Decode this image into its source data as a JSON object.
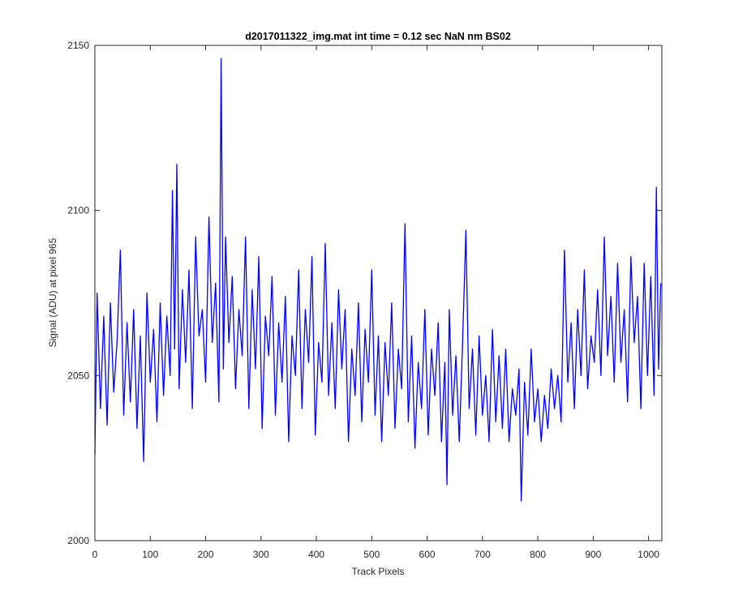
{
  "chart_data": {
    "type": "line",
    "title": "d2017011322_img.mat int time = 0.12 sec  NaN nm BS02",
    "xlabel": "Track Pixels",
    "ylabel": "Signal (ADU) at pixel 965",
    "xlim": [
      0,
      1024
    ],
    "ylim": [
      2000,
      2150
    ],
    "xticks": [
      0,
      100,
      200,
      300,
      400,
      500,
      600,
      700,
      800,
      900,
      1000
    ],
    "xtick_labels": [
      "0",
      "100",
      "200",
      "300",
      "400",
      "500",
      "600",
      "700",
      "800",
      "900",
      "1000"
    ],
    "yticks": [
      2000,
      2050,
      2100,
      2150
    ],
    "ytick_labels": [
      "2000",
      "2050",
      "2100",
      "2150"
    ],
    "grid": false,
    "line_color": "#0000ff",
    "series": [
      {
        "x": [
          0,
          4,
          10,
          16,
          22,
          28,
          34,
          40,
          46,
          52,
          58,
          64,
          70,
          76,
          82,
          88,
          94,
          100,
          106,
          112,
          118,
          124,
          130,
          136,
          140,
          144,
          148,
          152,
          158,
          164,
          170,
          176,
          182,
          188,
          194,
          200,
          206,
          212,
          218,
          224,
          228,
          232,
          236,
          242,
          248,
          254,
          260,
          266,
          272,
          278,
          284,
          290,
          296,
          302,
          308,
          314,
          320,
          326,
          332,
          338,
          344,
          350,
          356,
          362,
          368,
          374,
          380,
          386,
          392,
          398,
          404,
          410,
          416,
          422,
          428,
          434,
          440,
          446,
          452,
          458,
          464,
          470,
          476,
          482,
          488,
          494,
          500,
          506,
          512,
          518,
          524,
          530,
          536,
          542,
          548,
          554,
          560,
          566,
          572,
          578,
          584,
          590,
          596,
          602,
          608,
          614,
          620,
          626,
          632,
          636,
          640,
          646,
          652,
          658,
          664,
          670,
          676,
          682,
          688,
          694,
          700,
          706,
          712,
          718,
          724,
          730,
          736,
          742,
          748,
          754,
          760,
          766,
          770,
          776,
          782,
          788,
          794,
          800,
          806,
          812,
          818,
          824,
          830,
          836,
          842,
          848,
          854,
          860,
          866,
          872,
          878,
          884,
          890,
          896,
          902,
          908,
          914,
          920,
          926,
          932,
          938,
          944,
          950,
          956,
          962,
          968,
          974,
          980,
          986,
          992,
          998,
          1004,
          1010,
          1014,
          1018,
          1022
        ],
        "y": [
          2026,
          2075,
          2040,
          2068,
          2035,
          2072,
          2045,
          2060,
          2088,
          2038,
          2066,
          2042,
          2070,
          2034,
          2062,
          2024,
          2075,
          2048,
          2064,
          2036,
          2072,
          2044,
          2068,
          2050,
          2106,
          2058,
          2114,
          2046,
          2076,
          2054,
          2082,
          2040,
          2092,
          2062,
          2070,
          2048,
          2098,
          2060,
          2078,
          2042,
          2146,
          2052,
          2092,
          2060,
          2080,
          2046,
          2070,
          2056,
          2092,
          2040,
          2076,
          2052,
          2086,
          2034,
          2068,
          2056,
          2080,
          2038,
          2066,
          2048,
          2074,
          2030,
          2062,
          2050,
          2082,
          2040,
          2070,
          2054,
          2086,
          2032,
          2060,
          2048,
          2090,
          2044,
          2066,
          2040,
          2076,
          2052,
          2070,
          2030,
          2058,
          2044,
          2072,
          2036,
          2064,
          2048,
          2082,
          2038,
          2062,
          2030,
          2060,
          2044,
          2072,
          2034,
          2058,
          2046,
          2096,
          2036,
          2062,
          2028,
          2054,
          2040,
          2070,
          2032,
          2058,
          2044,
          2066,
          2030,
          2054,
          2017,
          2070,
          2038,
          2056,
          2030,
          2060,
          2094,
          2040,
          2058,
          2032,
          2062,
          2038,
          2050,
          2030,
          2064,
          2036,
          2056,
          2034,
          2058,
          2030,
          2046,
          2038,
          2052,
          2012,
          2048,
          2032,
          2058,
          2036,
          2046,
          2030,
          2044,
          2034,
          2052,
          2040,
          2050,
          2036,
          2088,
          2048,
          2066,
          2040,
          2070,
          2050,
          2082,
          2046,
          2062,
          2054,
          2076,
          2050,
          2092,
          2056,
          2074,
          2048,
          2084,
          2054,
          2070,
          2042,
          2086,
          2060,
          2074,
          2040,
          2084,
          2050,
          2080,
          2044,
          2107,
          2052,
          2078
        ]
      }
    ]
  }
}
